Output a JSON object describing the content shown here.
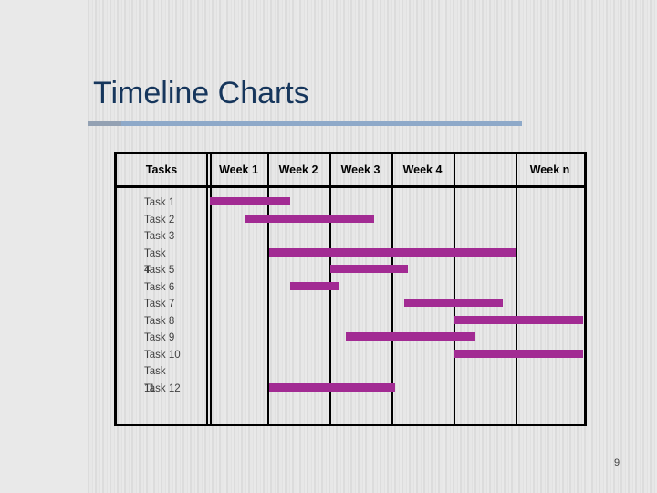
{
  "slide": {
    "title": "Timeline Charts",
    "page_number": "9"
  },
  "colors": {
    "title_text": "#16365c",
    "underline_main": "#8ea9c9",
    "underline_left": "#93a1b3",
    "bar_fill": "#a22b93",
    "grid_border": "#000000",
    "task_text": "#3f3f3f",
    "header_text": "#000000",
    "background": "#e9e9e9",
    "background_stripe": "#dcdcdc"
  },
  "chart_data": {
    "type": "bar",
    "variant": "gantt-timeline",
    "title": "Timeline Charts",
    "header_tasks_label": "Tasks",
    "columns": [
      "Week 1",
      "Week 2",
      "Week 3",
      "Week 4",
      "",
      "Week n"
    ],
    "x_unit": "weeks",
    "x_range": [
      0,
      6.1
    ],
    "grid": "vertical-only",
    "legend": "none",
    "rows": [
      {
        "task": "Task 1",
        "label_lines": [
          "Task 1"
        ],
        "start": 0.05,
        "end": 1.35
      },
      {
        "task": "Task 2",
        "label_lines": [
          "Task 2"
        ],
        "start": 0.6,
        "end": 2.7
      },
      {
        "task": "Task 3",
        "label_lines": [
          "Task 3"
        ],
        "start": null,
        "end": null
      },
      {
        "task": "Task 4",
        "label_lines": [
          "Task",
          "4"
        ],
        "start": 1.0,
        "end": 5.0
      },
      {
        "task": "Task 5",
        "label_lines": [
          "Task 5"
        ],
        "start": 2.0,
        "end": 3.25
      },
      {
        "task": "Task 6",
        "label_lines": [
          "Task 6"
        ],
        "start": 1.35,
        "end": 2.15
      },
      {
        "task": "Task 7",
        "label_lines": [
          "Task 7"
        ],
        "start": 3.2,
        "end": 4.8
      },
      {
        "task": "Task 8",
        "label_lines": [
          "Task 8"
        ],
        "start": 4.0,
        "end": 6.1
      },
      {
        "task": "Task 9",
        "label_lines": [
          "Task 9"
        ],
        "start": 2.25,
        "end": 4.35
      },
      {
        "task": "Task 10",
        "label_lines": [
          "Task 10"
        ],
        "start": 4.0,
        "end": 6.1
      },
      {
        "task": "Task 11",
        "label_lines": [
          "Task",
          "11"
        ],
        "start": null,
        "end": null
      },
      {
        "task": "Task 12",
        "label_lines": [
          "Task 12"
        ],
        "start": 1.0,
        "end": 3.05
      }
    ]
  }
}
